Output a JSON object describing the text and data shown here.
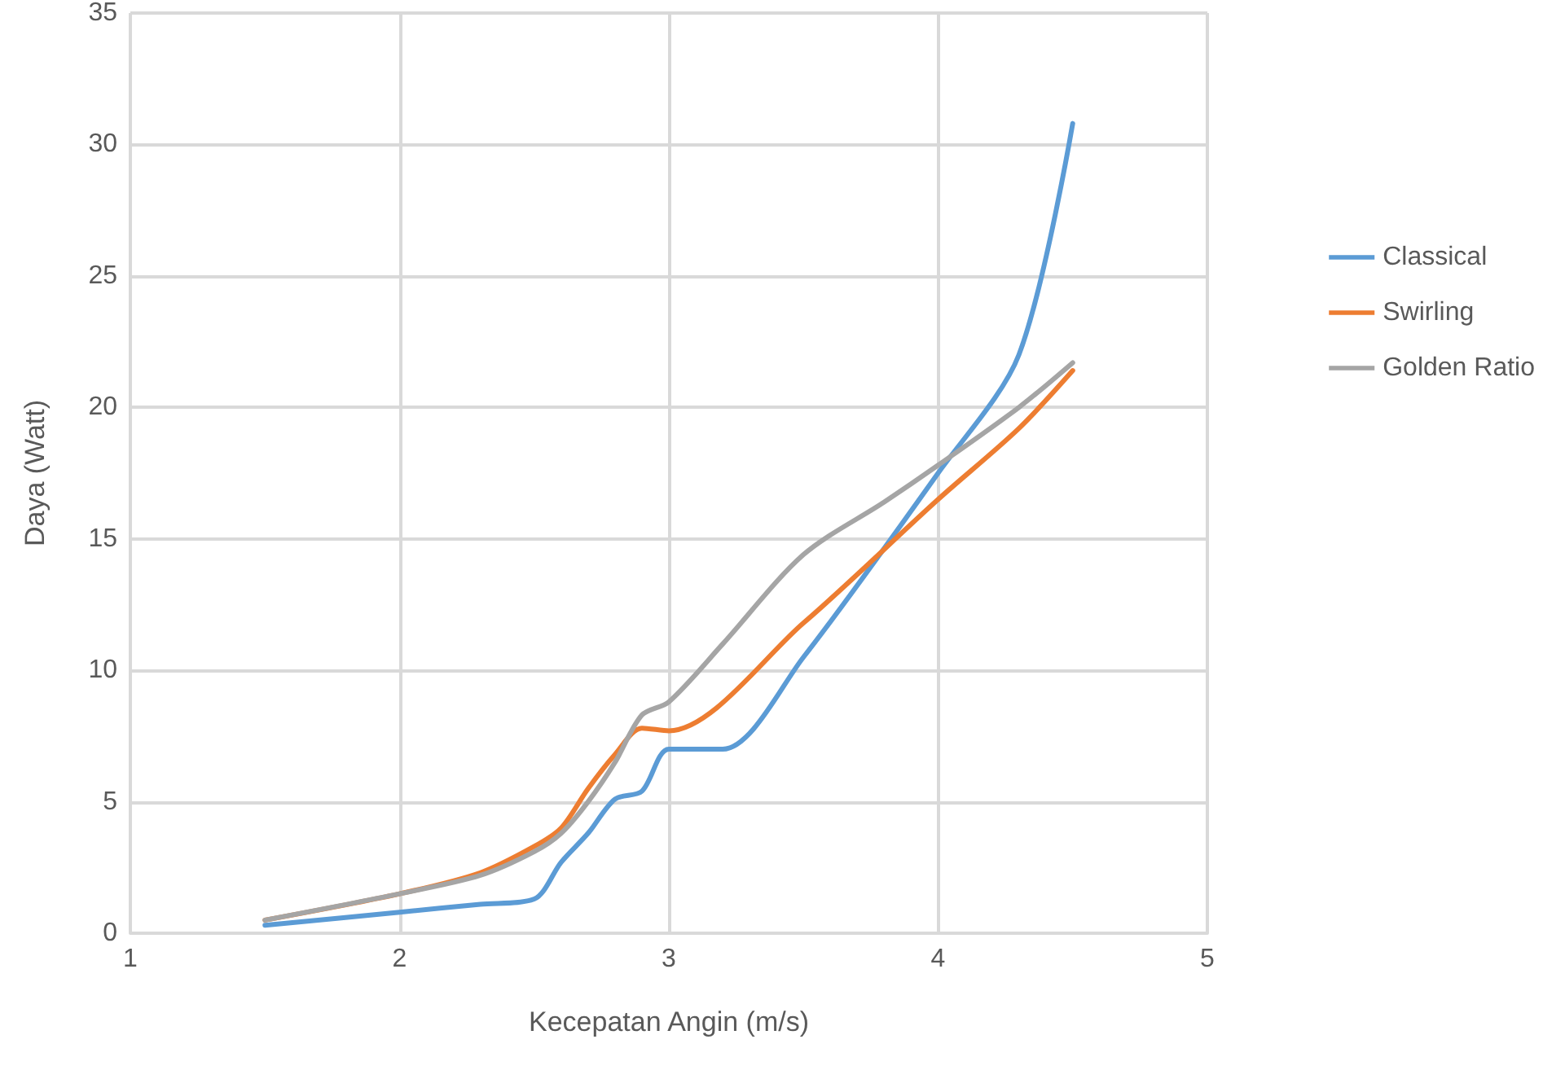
{
  "chart_data": {
    "type": "line",
    "xlabel": "Kecepatan Angin (m/s)",
    "ylabel": "Daya (Watt)",
    "xlim": [
      1,
      5
    ],
    "xticks": [
      1,
      2,
      3,
      4,
      5
    ],
    "ylim": [
      0,
      35
    ],
    "yticks": [
      0,
      5,
      10,
      15,
      20,
      25,
      30,
      35
    ],
    "grid": true,
    "legend": "right",
    "marker": "none",
    "line_style": "solid",
    "series": [
      {
        "name": "Classical",
        "color": "#5b9bd5",
        "x": [
          1.5,
          2,
          2.3,
          2.5,
          2.6,
          2.7,
          2.8,
          2.9,
          3,
          3.2,
          3.5,
          4,
          4.3,
          4.5
        ],
        "values": [
          0.3,
          0.8,
          1.1,
          1.3,
          2.7,
          3.8,
          5.1,
          5.4,
          7.0,
          7.0,
          10.5,
          17.5,
          22,
          30.8
        ]
      },
      {
        "name": "Swirling",
        "color": "#ed7d31",
        "x": [
          1.5,
          2,
          2.3,
          2.5,
          2.6,
          2.7,
          2.8,
          2.9,
          3,
          3.5,
          4,
          4.3,
          4.5
        ],
        "values": [
          0.5,
          1.5,
          2.3,
          3.3,
          4.0,
          5.5,
          6.8,
          7.8,
          7.7,
          11.8,
          16.5,
          19.2,
          21.4
        ]
      },
      {
        "name": "Golden Ratio",
        "color": "#a5a5a5",
        "x": [
          1.5,
          2,
          2.3,
          2.5,
          2.6,
          2.7,
          2.8,
          2.9,
          3,
          3.2,
          3.5,
          3.8,
          4,
          4.3,
          4.5
        ],
        "values": [
          0.5,
          1.5,
          2.2,
          3.1,
          3.8,
          5.0,
          6.5,
          8.3,
          8.8,
          11.0,
          14.4,
          16.4,
          17.8,
          20,
          21.7
        ]
      }
    ]
  }
}
